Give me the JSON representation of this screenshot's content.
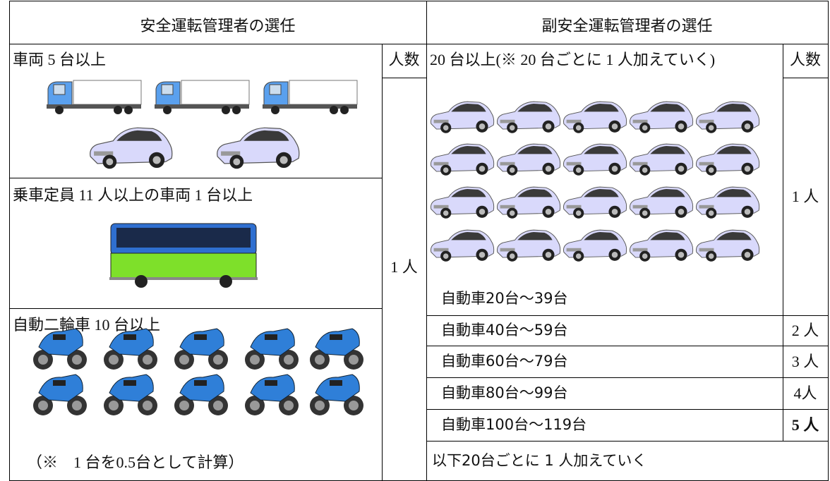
{
  "left": {
    "title": "安全運転管理者の選任",
    "count_header": "人数",
    "count": "1 人",
    "sections": [
      {
        "label": "車両 5 台以上"
      },
      {
        "label": "乗車定員 11 人以上の車両 1 台以上"
      },
      {
        "label": "自動二輪車 10 台以上",
        "note": "（※　1 台を0.5台として計算）"
      }
    ]
  },
  "right": {
    "title": "副安全運転管理者の選任",
    "condition": "20 台以上(※ 20 台ごとに 1 人加えていく)",
    "count_header": "人数",
    "rows": [
      {
        "range": "自動車20台～39台",
        "count": "1 人"
      },
      {
        "range": "自動車40台～59台",
        "count": "2 人"
      },
      {
        "range": "自動車60台～79台",
        "count": "3 人"
      },
      {
        "range": "自動車80台～99台",
        "count": "4人"
      },
      {
        "range": "自動車100台～119台",
        "count": "5 人"
      }
    ],
    "footer": "以下20台ごとに 1 人加えていく"
  }
}
